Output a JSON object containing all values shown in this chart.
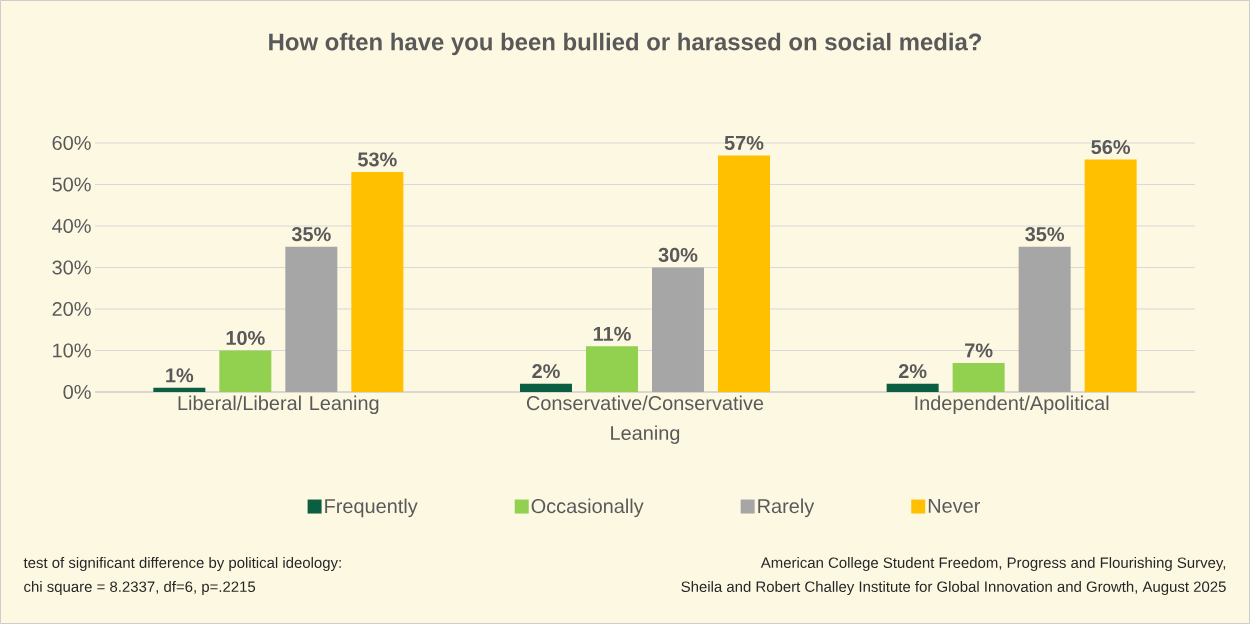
{
  "chart_data": {
    "type": "bar",
    "title": "How often have you been bullied or harassed on social media?",
    "categories": [
      "Liberal/Liberal Leaning",
      "Conservative/Conservative Leaning",
      "Independent/Apolitical"
    ],
    "series": [
      {
        "name": "Frequently",
        "color": "#0b5e42",
        "values": [
          1,
          2,
          2
        ],
        "value_labels": [
          "1%",
          "2%",
          "2%"
        ]
      },
      {
        "name": "Occasionally",
        "color": "#92d050",
        "values": [
          10,
          11,
          7
        ],
        "value_labels": [
          "10%",
          "11%",
          "7%"
        ]
      },
      {
        "name": "Rarely",
        "color": "#a6a6a6",
        "values": [
          35,
          30,
          35
        ],
        "value_labels": [
          "35%",
          "30%",
          "35%"
        ]
      },
      {
        "name": "Never",
        "color": "#ffc000",
        "values": [
          53,
          57,
          56
        ],
        "value_labels": [
          "53%",
          "57%",
          "56%"
        ]
      }
    ],
    "ylim": [
      0,
      60
    ],
    "yticks": [
      {
        "value": 0,
        "label": "0%"
      },
      {
        "value": 10,
        "label": "10%"
      },
      {
        "value": 20,
        "label": "20%"
      },
      {
        "value": 30,
        "label": "30%"
      },
      {
        "value": 40,
        "label": "40%"
      },
      {
        "value": 50,
        "label": "50%"
      },
      {
        "value": 60,
        "label": "60%"
      }
    ],
    "grid": "y",
    "legend": "bottom",
    "annotations": [
      "test of significant difference by political ideology:",
      "chi square = 8.2337, df=6, p=.2215",
      "American College Student Freedom, Progress and Flourishing Survey,",
      "Sheila and Robert Challey Institute for Global Innovation and Growth, August 2025"
    ]
  }
}
